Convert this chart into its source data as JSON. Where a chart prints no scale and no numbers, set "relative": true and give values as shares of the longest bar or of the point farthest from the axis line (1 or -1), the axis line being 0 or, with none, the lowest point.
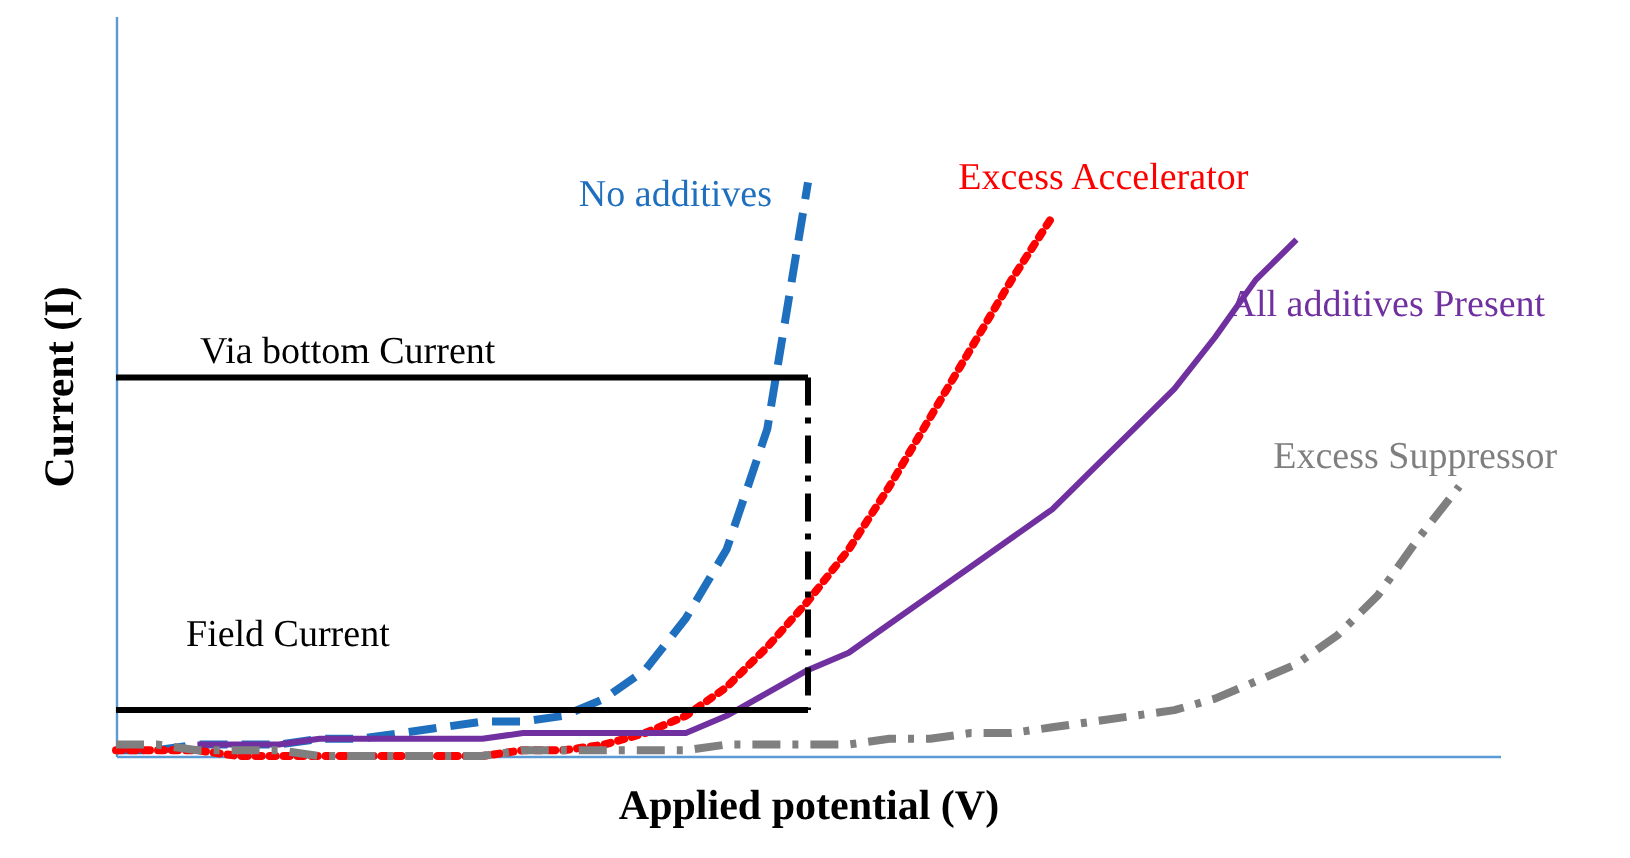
{
  "chart_data": {
    "type": "line",
    "relative": true,
    "xlabel": "Applied potential (V)",
    "ylabel": "Current (I)",
    "grid": false,
    "categories": [
      null,
      null,
      null,
      null,
      null,
      null,
      null,
      null,
      null,
      null,
      null,
      null,
      null,
      null,
      null,
      null,
      null,
      null,
      null,
      null,
      null,
      null,
      null,
      null,
      null,
      null,
      null,
      null,
      null,
      null,
      null,
      null,
      null,
      null,
      null
    ],
    "series": [
      {
        "name": "No additives",
        "color": "#1f6fbf",
        "line_style": "dashed",
        "values": [
          0.01,
          0.01,
          0.02,
          0.02,
          0.02,
          0.03,
          0.03,
          0.04,
          0.05,
          0.06,
          0.06,
          0.07,
          0.1,
          0.15,
          0.24,
          0.36,
          0.57,
          1.0,
          null,
          null,
          null,
          null,
          null,
          null,
          null,
          null,
          null,
          null,
          null,
          null,
          null,
          null,
          null,
          null,
          null
        ]
      },
      {
        "name": "Excess Accelerator",
        "color": "#ff0000",
        "line_style": "dotted",
        "values": [
          0.01,
          0.01,
          0.01,
          0.0,
          0.0,
          0.0,
          0.0,
          0.0,
          0.0,
          0.0,
          0.01,
          0.01,
          0.02,
          0.04,
          0.07,
          0.12,
          0.19,
          0.27,
          0.36,
          0.47,
          0.59,
          0.71,
          0.83,
          0.94,
          null,
          null,
          null,
          null,
          null,
          null,
          null,
          null,
          null,
          null,
          null
        ]
      },
      {
        "name": "All additives Present",
        "color": "#7030a0",
        "line_style": "solid",
        "values": [
          null,
          null,
          0.02,
          0.02,
          0.02,
          0.03,
          0.03,
          0.03,
          0.03,
          0.03,
          0.04,
          0.04,
          0.04,
          0.04,
          0.04,
          0.07,
          0.11,
          0.15,
          0.18,
          0.23,
          0.28,
          0.33,
          0.38,
          0.43,
          0.5,
          0.57,
          0.64,
          0.73,
          0.83,
          0.9,
          null,
          null,
          null,
          null,
          null
        ]
      },
      {
        "name": "Excess Suppressor",
        "color": "#7f7f7f",
        "line_style": "dashdot",
        "values": [
          0.02,
          0.02,
          0.01,
          0.01,
          0.01,
          0.0,
          0.0,
          0.0,
          0.0,
          0.0,
          0.01,
          0.01,
          0.01,
          0.01,
          0.01,
          0.02,
          0.02,
          0.02,
          0.02,
          0.03,
          0.03,
          0.04,
          0.04,
          0.05,
          0.06,
          0.07,
          0.08,
          0.1,
          0.13,
          0.16,
          0.21,
          0.28,
          0.38,
          0.47,
          null
        ]
      },
      {
        "name": "Via bottom Current",
        "color": "#000000",
        "line_style": "solid",
        "values": [
          0.66,
          0.66,
          0.66,
          0.66,
          0.66,
          0.66,
          0.66,
          0.66,
          0.66,
          0.66,
          0.66,
          0.66,
          0.66,
          0.66,
          0.66,
          0.66,
          0.66,
          0.66,
          null,
          null,
          null,
          null,
          null,
          null,
          null,
          null,
          null,
          null,
          null,
          null,
          null,
          null,
          null,
          null,
          null
        ]
      },
      {
        "name": "Field Current",
        "color": "#000000",
        "line_style": "solid",
        "values": [
          0.08,
          0.08,
          0.08,
          0.08,
          0.08,
          0.08,
          0.08,
          0.08,
          0.08,
          0.08,
          0.08,
          0.08,
          0.08,
          0.08,
          0.08,
          0.08,
          0.08,
          0.08,
          null,
          null,
          null,
          null,
          null,
          null,
          null,
          null,
          null,
          null,
          null,
          null,
          null,
          null,
          null,
          null,
          null
        ]
      }
    ]
  }
}
